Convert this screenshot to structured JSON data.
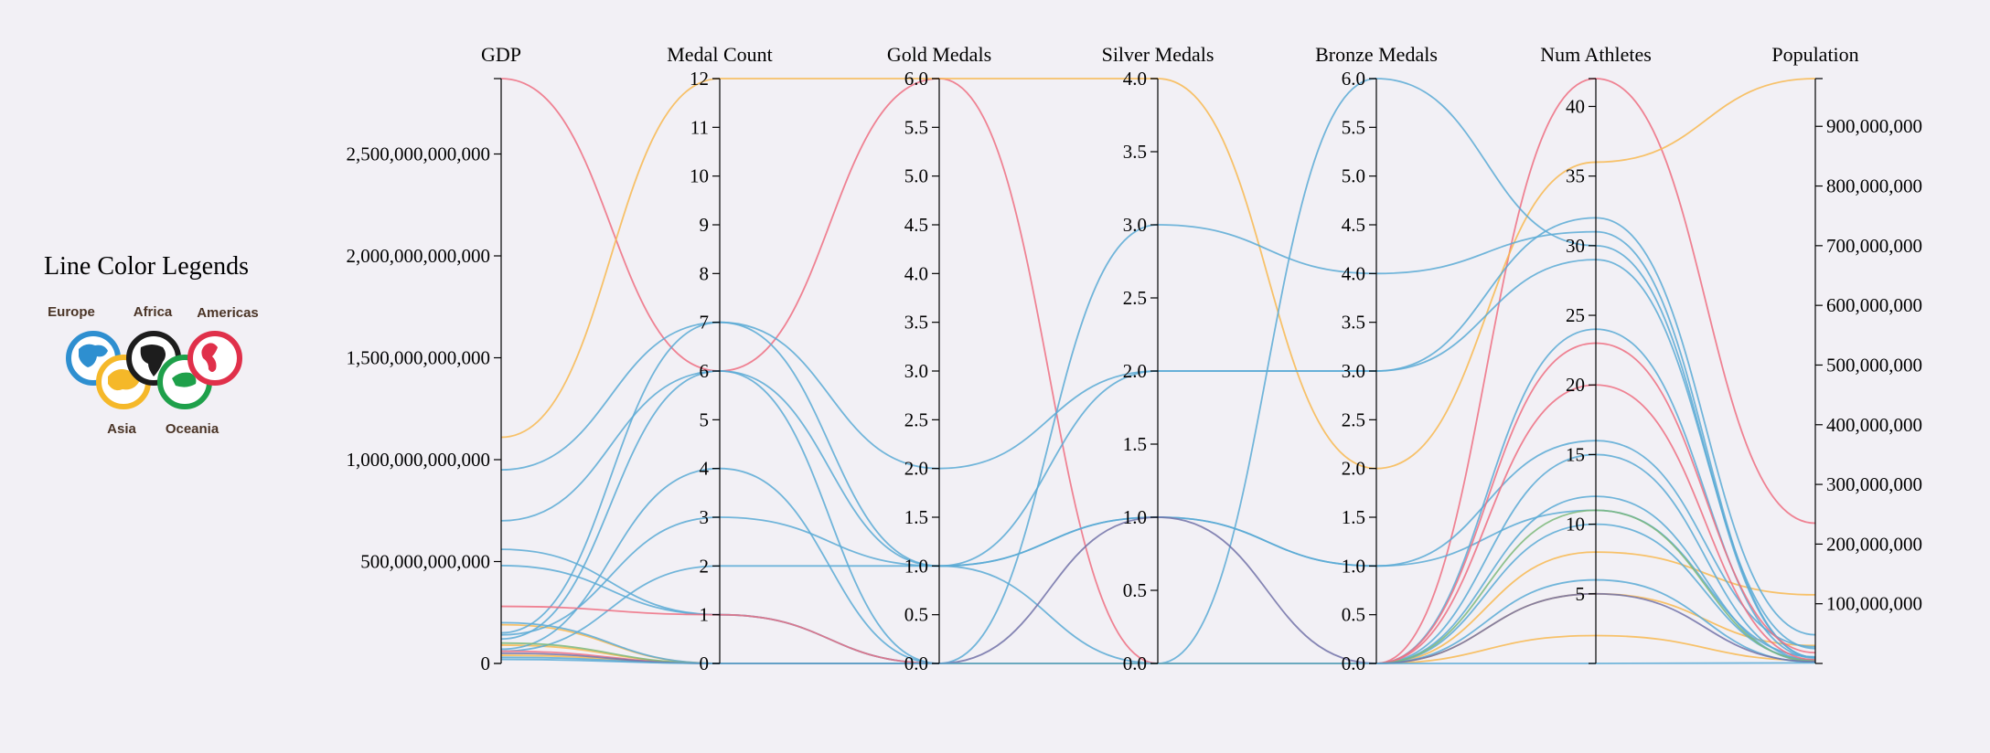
{
  "chart_data": {
    "type": "parallel-coordinates",
    "axes": [
      {
        "name": "GDP",
        "range": [
          0,
          2870000000000
        ],
        "ticks": [
          0,
          500000000000,
          1000000000000,
          1500000000000,
          2000000000000,
          2500000000000
        ],
        "tick_labels": [
          "0",
          "500,000,000,000",
          "1,000,000,000,000",
          "1,500,000,000,000",
          "2,000,000,000,000",
          "2,500,000,000,000"
        ],
        "tick_side": "left"
      },
      {
        "name": "Medal Count",
        "range": [
          0,
          12
        ],
        "ticks": [
          0,
          1,
          2,
          3,
          4,
          5,
          6,
          7,
          8,
          9,
          10,
          11,
          12
        ],
        "tick_labels": [
          "0",
          "1",
          "2",
          "3",
          "4",
          "5",
          "6",
          "7",
          "8",
          "9",
          "10",
          "11",
          "12"
        ],
        "tick_side": "left"
      },
      {
        "name": "Gold Medals",
        "range": [
          0,
          6
        ],
        "ticks": [
          0,
          0.5,
          1,
          1.5,
          2,
          2.5,
          3,
          3.5,
          4,
          4.5,
          5,
          5.5,
          6
        ],
        "tick_labels": [
          "0.0",
          "0.5",
          "1.0",
          "1.5",
          "2.0",
          "2.5",
          "3.0",
          "3.5",
          "4.0",
          "4.5",
          "5.0",
          "5.5",
          "6.0"
        ],
        "tick_side": "left"
      },
      {
        "name": "Silver Medals",
        "range": [
          0,
          4
        ],
        "ticks": [
          0,
          0.5,
          1,
          1.5,
          2,
          2.5,
          3,
          3.5,
          4
        ],
        "tick_labels": [
          "0.0",
          "0.5",
          "1.0",
          "1.5",
          "2.0",
          "2.5",
          "3.0",
          "3.5",
          "4.0"
        ],
        "tick_side": "left"
      },
      {
        "name": "Bronze Medals",
        "range": [
          0,
          6
        ],
        "ticks": [
          0,
          0.5,
          1,
          1.5,
          2,
          2.5,
          3,
          3.5,
          4,
          4.5,
          5,
          5.5,
          6
        ],
        "tick_labels": [
          "0.0",
          "0.5",
          "1.0",
          "1.5",
          "2.0",
          "2.5",
          "3.0",
          "3.5",
          "4.0",
          "4.5",
          "5.0",
          "5.5",
          "6.0"
        ],
        "tick_side": "left"
      },
      {
        "name": "Num Athletes",
        "range": [
          0,
          42
        ],
        "ticks": [
          5,
          10,
          15,
          20,
          25,
          30,
          35,
          40
        ],
        "tick_labels": [
          "5",
          "10",
          "15",
          "20",
          "25",
          "30",
          "35",
          "40"
        ],
        "tick_side": "left"
      },
      {
        "name": "Population",
        "range": [
          0,
          980000000
        ],
        "ticks": [
          100000000,
          200000000,
          300000000,
          400000000,
          500000000,
          600000000,
          700000000,
          800000000,
          900000000
        ],
        "tick_labels": [
          "100,000,000",
          "200,000,000",
          "300,000,000",
          "400,000,000",
          "500,000,000",
          "600,000,000",
          "700,000,000",
          "800,000,000",
          "900,000,000"
        ],
        "tick_side": "right"
      }
    ],
    "region_colors": {
      "Europe": "#2e8fd0",
      "Asia": "#f5b829",
      "Africa": "#1d1d1d",
      "Oceania": "#1ea04a",
      "Americas": "#e0304a"
    },
    "line_colors": {
      "Europe": "#5aaad5",
      "Asia": "#f8b950",
      "Americas": "#ef6f81",
      "Oceania": "#7cb87a",
      "Other": "#7272a8"
    },
    "series": [
      {
        "region": "Americas",
        "values": [
          2870000000000,
          6,
          6,
          0,
          0,
          42,
          235000000
        ]
      },
      {
        "region": "Asia",
        "values": [
          1110000000000,
          12,
          6,
          4,
          2,
          36,
          980000000
        ]
      },
      {
        "region": "Asia",
        "values": [
          190000000000,
          0,
          0,
          0,
          0,
          8,
          115000000
        ]
      },
      {
        "region": "Asia",
        "values": [
          90000000000,
          0,
          0,
          0,
          0,
          5,
          30000000
        ]
      },
      {
        "region": "Asia",
        "values": [
          40000000000,
          0,
          0,
          0,
          0,
          2,
          5000000
        ]
      },
      {
        "region": "Europe",
        "values": [
          950000000000,
          7,
          2,
          2,
          3,
          32,
          48000000
        ]
      },
      {
        "region": "Europe",
        "values": [
          700000000000,
          6,
          1,
          1,
          1,
          16,
          28000000
        ]
      },
      {
        "region": "Europe",
        "values": [
          560000000000,
          1,
          0,
          0,
          6,
          30,
          10000000
        ]
      },
      {
        "region": "Europe",
        "values": [
          480000000000,
          1,
          0,
          0,
          0,
          12,
          3000000
        ]
      },
      {
        "region": "Europe",
        "values": [
          150000000000,
          7,
          1,
          2,
          3,
          29,
          25000000
        ]
      },
      {
        "region": "Europe",
        "values": [
          120000000000,
          6,
          0,
          3,
          4,
          31,
          10000000
        ]
      },
      {
        "region": "Europe",
        "values": [
          140000000000,
          3,
          1,
          1,
          1,
          11,
          11000000
        ]
      },
      {
        "region": "Europe",
        "values": [
          70000000000,
          4,
          0,
          0,
          0,
          15,
          5000000
        ]
      },
      {
        "region": "Europe",
        "values": [
          60000000000,
          2,
          1,
          0,
          0,
          24,
          9000000
        ]
      },
      {
        "region": "Europe",
        "values": [
          200000000000,
          0,
          0,
          0,
          0,
          10,
          6000000
        ]
      },
      {
        "region": "Europe",
        "values": [
          30000000000,
          0,
          0,
          0,
          0,
          6,
          2000000
        ]
      },
      {
        "region": "Americas",
        "values": [
          280000000000,
          1,
          0,
          0,
          0,
          23,
          18000000
        ]
      },
      {
        "region": "Americas",
        "values": [
          60000000000,
          0,
          0,
          0,
          0,
          20,
          6000000
        ]
      },
      {
        "region": "Oceania",
        "values": [
          100000000000,
          0,
          0,
          0,
          0,
          11,
          4000000
        ]
      },
      {
        "region": "Other",
        "values": [
          50000000000,
          0,
          0,
          1,
          0,
          5,
          3000000
        ]
      },
      {
        "region": "Europe",
        "values": [
          20000000000,
          0,
          0,
          0,
          0,
          0,
          1000000
        ]
      }
    ],
    "legend": {
      "title": "Line Color Legends",
      "entries": [
        "Europe",
        "Africa",
        "Americas",
        "Asia",
        "Oceania"
      ],
      "placement": "left"
    }
  }
}
